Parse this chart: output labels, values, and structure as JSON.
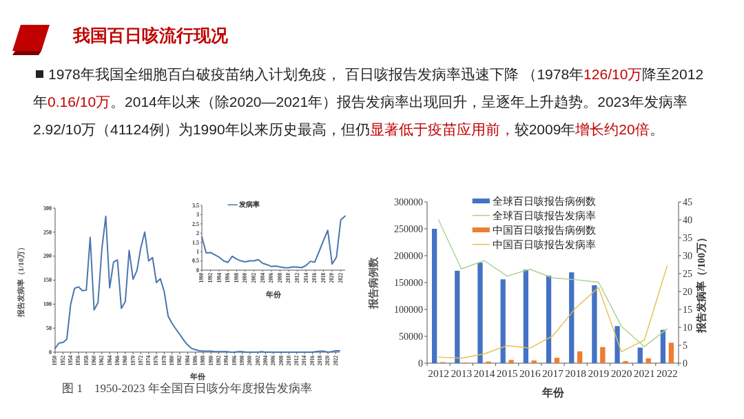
{
  "chart_data": [
    {
      "type": "other",
      "title": "我国百日咳流行现况",
      "annotations": [
        "1978年我国全细胞百白破疫苗纳入计划免疫， 百日咳报告发病率迅速下降 （1978年",
        "126/10万",
        "降至2012年",
        "0.16/10万",
        "。2014年以来（除2020—2021年）报告发病率出现回升，呈逐年上升趋势。2023年发病率2.92/10万（41124例）为1990年以来历史最高，但仍",
        "显著低于疫苗应用前，",
        "较2009年",
        "增长约20倍",
        "。"
      ]
    },
    {
      "type": "line",
      "color": "#4a76b0",
      "xlabel": "年份",
      "ylabel": "报告发病率（1/10万）",
      "annotations": [
        "图 1　1950-2023 年全国百日咳分年度报告发病率"
      ],
      "x": [
        1950,
        1951,
        1952,
        1953,
        1954,
        1955,
        1956,
        1957,
        1958,
        1959,
        1960,
        1961,
        1962,
        1963,
        1964,
        1965,
        1966,
        1967,
        1968,
        1969,
        1970,
        1971,
        1972,
        1973,
        1974,
        1975,
        1976,
        1977,
        1978,
        1979,
        1980,
        1981,
        1982,
        1983,
        1984,
        1985,
        1986,
        1987,
        1988,
        1989,
        1990,
        1991,
        1992,
        1993,
        1994,
        1995,
        1996,
        1997,
        1998,
        1999,
        2000,
        2001,
        2002,
        2003,
        2004,
        2005,
        2006,
        2007,
        2008,
        2009,
        2010,
        2011,
        2012,
        2013,
        2014,
        2015,
        2016,
        2017,
        2018,
        2019,
        2020,
        2021,
        2022,
        2023
      ],
      "values": [
        8,
        19,
        20,
        27,
        100,
        133,
        136,
        128,
        129,
        239,
        88,
        103,
        215,
        283,
        134,
        188,
        192,
        91,
        105,
        212,
        152,
        170,
        218,
        250,
        190,
        197,
        145,
        153,
        126,
        75,
        60,
        48,
        37,
        25,
        15,
        8,
        5,
        3,
        2,
        2,
        2,
        1,
        1,
        1,
        1,
        0,
        0,
        1,
        1,
        0,
        0,
        0,
        0,
        1,
        0,
        0,
        0,
        0,
        0,
        0,
        0,
        0,
        0,
        0,
        0,
        0,
        0,
        1,
        2,
        2,
        0,
        1,
        3,
        3
      ],
      "xlim": [
        1950,
        2023
      ],
      "xticks": [
        1950,
        1952,
        1954,
        1956,
        1958,
        1960,
        1962,
        1964,
        1966,
        1968,
        1970,
        1972,
        1974,
        1976,
        1978,
        1980,
        1982,
        1984,
        1986,
        1988,
        1990,
        1992,
        1994,
        1996,
        1998,
        2000,
        2002,
        2004,
        2006,
        2008,
        2010,
        2012,
        2014,
        2016,
        2018,
        2020,
        2022
      ],
      "ylim": [
        0,
        300
      ],
      "yticks": [
        0,
        50,
        100,
        150,
        200,
        250,
        300
      ]
    },
    {
      "type": "line",
      "xlabel": "年份",
      "legend": "top",
      "series": [
        {
          "name": "发病率",
          "color": "#4a76b0",
          "x": [
            1990,
            1991,
            1992,
            1993,
            1994,
            1995,
            1996,
            1997,
            1998,
            1999,
            2000,
            2001,
            2002,
            2003,
            2004,
            2005,
            2006,
            2007,
            2008,
            2009,
            2010,
            2011,
            2012,
            2013,
            2014,
            2015,
            2016,
            2017,
            2018,
            2019,
            2020,
            2021,
            2022,
            2023
          ],
          "values": [
            1.8,
            0.93,
            0.95,
            0.82,
            0.7,
            0.5,
            0.42,
            0.75,
            0.6,
            0.5,
            0.45,
            0.5,
            0.5,
            0.57,
            0.37,
            0.3,
            0.2,
            0.22,
            0.18,
            0.13,
            0.13,
            0.18,
            0.16,
            0.14,
            0.25,
            0.48,
            0.43,
            1.0,
            1.6,
            2.15,
            0.33,
            0.7,
            2.72,
            2.92
          ]
        }
      ],
      "xlim": [
        1990,
        2023
      ],
      "xticks": [
        1990,
        1992,
        1994,
        1996,
        1998,
        2000,
        2002,
        2004,
        2006,
        2008,
        2010,
        2012,
        2014,
        2016,
        2018,
        2020,
        2022
      ],
      "ylim": [
        0,
        3.5
      ],
      "yticks": [
        0,
        0.5,
        1,
        1.5,
        2,
        2.5,
        3,
        3.5
      ]
    },
    {
      "type": "bar",
      "xlabel": "年份",
      "ylabel": "报告病例数",
      "y2label": "报告发病率（/100万）",
      "legend": "top",
      "categories": [
        "2012",
        "2013",
        "2014",
        "2015",
        "2016",
        "2017",
        "2018",
        "2019",
        "2020",
        "2021",
        "2022"
      ],
      "series": [
        {
          "name": "全球百日咳报告病例数",
          "type": "bar",
          "color": "#4472c4",
          "values": [
            250000,
            172000,
            187000,
            156000,
            174000,
            163000,
            169000,
            145000,
            69000,
            29000,
            62000
          ]
        },
        {
          "name": "全球百日咳报告发病率",
          "type": "line",
          "axis": "y2",
          "color": "#a9d18e",
          "values": [
            40,
            26.3,
            28.6,
            24.3,
            26.2,
            23.8,
            23.3,
            22.6,
            10.3,
            4.6,
            9.6
          ]
        },
        {
          "name": "中国百日咳报告病例数",
          "type": "bar",
          "color": "#ed7d31",
          "values": [
            2000,
            1000,
            3000,
            6000,
            5000,
            10000,
            22000,
            30000,
            4000,
            9000,
            38000
          ]
        },
        {
          "name": "中国百日咳报告发病率",
          "type": "line",
          "axis": "y2",
          "color": "#e6c04a",
          "values": [
            1.7,
            1.4,
            2.6,
            4.9,
            4.2,
            7.6,
            15.4,
            21.1,
            3.2,
            6.4,
            27.1
          ]
        }
      ],
      "ylim": [
        0,
        300000
      ],
      "yticks": [
        0,
        50000,
        100000,
        150000,
        200000,
        250000,
        300000
      ],
      "y2lim": [
        0,
        45
      ],
      "y2ticks": [
        0,
        5,
        10,
        15,
        20,
        25,
        30,
        35,
        40,
        45
      ]
    }
  ]
}
